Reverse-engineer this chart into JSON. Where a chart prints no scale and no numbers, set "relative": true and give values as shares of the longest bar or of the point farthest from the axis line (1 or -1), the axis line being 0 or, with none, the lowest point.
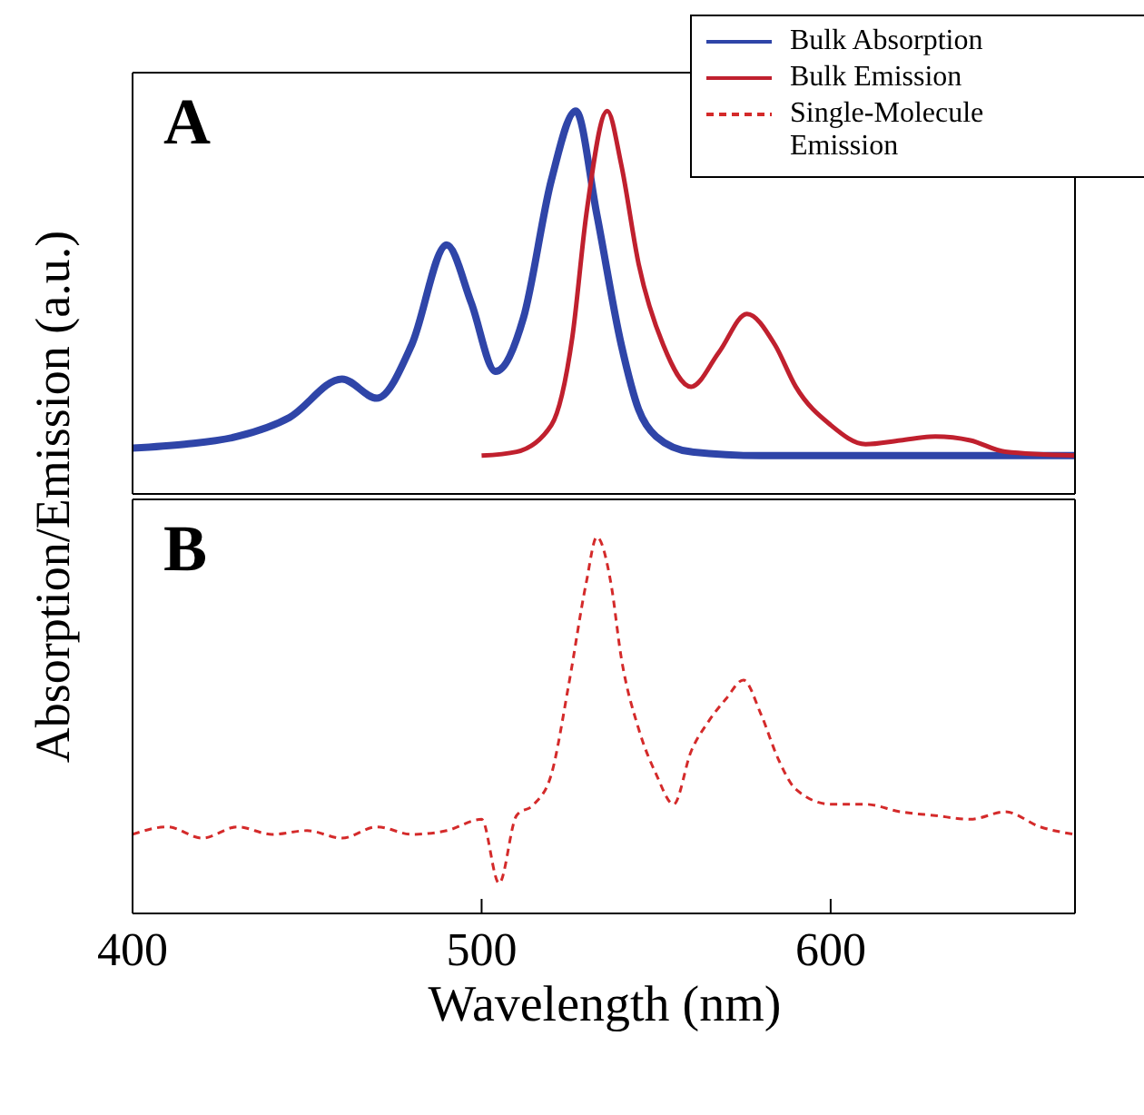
{
  "chart_data": [
    {
      "type": "line",
      "relative": true,
      "xlim": [
        400,
        670
      ],
      "xticks": [
        400,
        500,
        600
      ],
      "tick_labels": false,
      "ylabel": "Absorption/Emission (a.u.)",
      "annotations": [
        "A"
      ],
      "legend": "top right",
      "marker": "none",
      "series": [
        {
          "name": "Bulk Absorption",
          "color": "#2f45a8",
          "line_style": "solid",
          "x": [
            400,
            415,
            430,
            445,
            460,
            470,
            480,
            490,
            497,
            504,
            512,
            520,
            527,
            533,
            540,
            545,
            550,
            560,
            580,
            600,
            640,
            670
          ],
          "values": [
            0.12,
            0.13,
            0.15,
            0.2,
            0.3,
            0.25,
            0.39,
            0.65,
            0.5,
            0.32,
            0.46,
            0.82,
            1,
            0.73,
            0.39,
            0.22,
            0.15,
            0.11,
            0.1,
            0.1,
            0.1,
            0.1
          ]
        },
        {
          "name": "Bulk Emission",
          "color": "#c0202e",
          "line_style": "solid",
          "x": [
            500,
            510,
            520,
            526,
            530,
            536,
            540,
            545,
            552,
            560,
            568,
            576,
            584,
            590,
            600,
            610,
            620,
            630,
            640,
            650,
            670
          ],
          "values": [
            0.1,
            0.11,
            0.18,
            0.41,
            0.73,
            1,
            0.86,
            0.6,
            0.39,
            0.28,
            0.37,
            0.47,
            0.39,
            0.28,
            0.18,
            0.13,
            0.14,
            0.15,
            0.14,
            0.11,
            0.1
          ]
        }
      ]
    },
    {
      "type": "line",
      "relative": true,
      "xlim": [
        400,
        670
      ],
      "xticks": [
        400,
        500,
        600
      ],
      "tick_labels": "x",
      "xlabel": "Wavelength (nm)",
      "annotations": [
        "B"
      ],
      "legend": "top right",
      "marker": "none",
      "series": [
        {
          "name": "Single-Molecule Emission",
          "color": "#d42a2a",
          "line_style": "dashed",
          "x": [
            400,
            410,
            420,
            430,
            440,
            450,
            460,
            470,
            480,
            490,
            500,
            505,
            510,
            515,
            520,
            525,
            530,
            533,
            537,
            540,
            545,
            550,
            555,
            560,
            565,
            570,
            575,
            580,
            585,
            590,
            600,
            610,
            620,
            630,
            640,
            650,
            660,
            670
          ],
          "values": [
            0.21,
            0.23,
            0.2,
            0.23,
            0.21,
            0.22,
            0.2,
            0.23,
            0.21,
            0.22,
            0.25,
            0.08,
            0.26,
            0.29,
            0.37,
            0.61,
            0.88,
            1,
            0.88,
            0.68,
            0.49,
            0.37,
            0.29,
            0.43,
            0.51,
            0.57,
            0.62,
            0.53,
            0.41,
            0.33,
            0.29,
            0.29,
            0.27,
            0.26,
            0.25,
            0.27,
            0.23,
            0.21
          ]
        }
      ]
    }
  ]
}
